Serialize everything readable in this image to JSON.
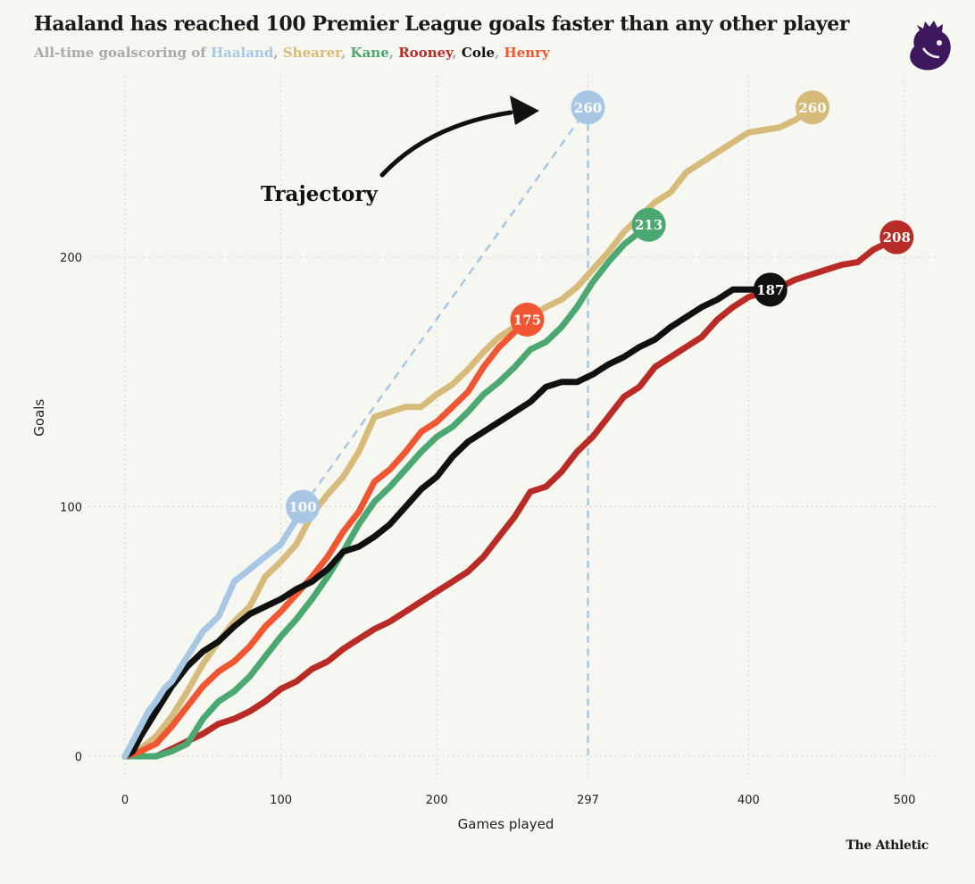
{
  "chart_data": {
    "type": "line",
    "title": "Haaland has reached 100 Premier League goals faster than any other player",
    "subtitle_prefix": "All-time goalscoring of",
    "xlabel": "Games played",
    "ylabel": "Goals",
    "xlim": [
      0,
      520
    ],
    "ylim": [
      0,
      270
    ],
    "x_ticks": [
      0,
      100,
      200,
      297,
      400,
      500
    ],
    "y_ticks": [
      0,
      100,
      200
    ],
    "x_tick_labels": [
      "0",
      "100",
      "200",
      "297",
      "400",
      "500"
    ],
    "y_tick_labels": [
      "0",
      "100",
      "200"
    ],
    "annotation": "Trajectory",
    "reference_line": {
      "x": 297,
      "label": "297"
    },
    "projection": {
      "from": [
        114,
        100
      ],
      "to": [
        297,
        260
      ],
      "label": "260",
      "color": "#a8c7e5"
    },
    "series": [
      {
        "name": "Haaland",
        "color": "#a8c7e5",
        "end_label": "100",
        "x": [
          0,
          5,
          10,
          15,
          20,
          25,
          30,
          40,
          50,
          60,
          70,
          80,
          90,
          100,
          105,
          110,
          114
        ],
        "y": [
          0,
          6,
          12,
          18,
          22,
          27,
          30,
          40,
          50,
          56,
          70,
          75,
          80,
          85,
          90,
          95,
          100
        ]
      },
      {
        "name": "Shearer",
        "color": "#d6bb7b",
        "end_label": "260",
        "x": [
          0,
          10,
          20,
          30,
          40,
          50,
          60,
          70,
          80,
          90,
          100,
          110,
          120,
          130,
          140,
          150,
          160,
          170,
          180,
          190,
          200,
          210,
          220,
          230,
          240,
          250,
          260,
          270,
          280,
          290,
          300,
          310,
          320,
          330,
          340,
          350,
          360,
          370,
          380,
          390,
          400,
          410,
          420,
          430,
          441
        ],
        "y": [
          0,
          3,
          8,
          16,
          26,
          37,
          46,
          54,
          60,
          72,
          78,
          85,
          97,
          105,
          112,
          122,
          136,
          138,
          140,
          140,
          145,
          149,
          155,
          162,
          168,
          172,
          176,
          180,
          183,
          188,
          195,
          202,
          210,
          216,
          222,
          226,
          234,
          238,
          242,
          246,
          250,
          251,
          252,
          255,
          260
        ]
      },
      {
        "name": "Kane",
        "color": "#4ba870",
        "end_label": "213",
        "x": [
          0,
          10,
          20,
          30,
          40,
          50,
          60,
          70,
          80,
          90,
          100,
          110,
          120,
          130,
          140,
          150,
          160,
          170,
          180,
          190,
          200,
          210,
          220,
          230,
          240,
          250,
          260,
          270,
          280,
          290,
          300,
          310,
          320,
          330,
          336
        ],
        "y": [
          0,
          0,
          0,
          2,
          5,
          15,
          22,
          26,
          32,
          40,
          48,
          55,
          63,
          72,
          82,
          93,
          102,
          108,
          115,
          122,
          128,
          132,
          138,
          145,
          150,
          156,
          163,
          166,
          172,
          180,
          190,
          198,
          205,
          210,
          213
        ]
      },
      {
        "name": "Rooney",
        "color": "#b92b26",
        "end_label": "208",
        "x": [
          0,
          10,
          20,
          30,
          40,
          50,
          60,
          70,
          80,
          90,
          100,
          110,
          120,
          130,
          140,
          150,
          160,
          170,
          180,
          190,
          200,
          210,
          220,
          230,
          240,
          250,
          260,
          270,
          280,
          290,
          300,
          310,
          320,
          330,
          340,
          350,
          360,
          370,
          380,
          390,
          400,
          410,
          420,
          430,
          440,
          450,
          460,
          470,
          480,
          490,
          495
        ],
        "y": [
          0,
          0,
          0,
          3,
          6,
          9,
          13,
          15,
          18,
          22,
          27,
          30,
          35,
          38,
          43,
          47,
          51,
          54,
          58,
          62,
          66,
          70,
          74,
          80,
          88,
          96,
          106,
          108,
          114,
          122,
          128,
          136,
          144,
          148,
          156,
          160,
          164,
          168,
          175,
          180,
          184,
          186,
          188,
          191,
          193,
          195,
          197,
          198,
          203,
          206,
          208
        ]
      },
      {
        "name": "Cole",
        "color": "#111111",
        "end_label": "187",
        "x": [
          0,
          5,
          10,
          20,
          30,
          40,
          50,
          60,
          70,
          80,
          90,
          100,
          110,
          120,
          130,
          140,
          150,
          160,
          170,
          180,
          190,
          200,
          210,
          220,
          230,
          240,
          250,
          260,
          270,
          280,
          290,
          300,
          310,
          320,
          330,
          340,
          350,
          360,
          370,
          380,
          390,
          400,
          410,
          414
        ],
        "y": [
          0,
          2,
          8,
          18,
          28,
          36,
          42,
          46,
          52,
          57,
          60,
          63,
          67,
          70,
          75,
          82,
          84,
          88,
          93,
          100,
          107,
          112,
          120,
          126,
          130,
          134,
          138,
          142,
          148,
          150,
          150,
          153,
          157,
          160,
          164,
          167,
          172,
          176,
          180,
          183,
          187,
          187,
          187,
          187
        ]
      },
      {
        "name": "Henry",
        "color": "#f05632",
        "end_label": "175",
        "x": [
          0,
          10,
          20,
          30,
          40,
          50,
          60,
          70,
          80,
          90,
          100,
          110,
          120,
          130,
          140,
          150,
          160,
          170,
          180,
          190,
          200,
          210,
          220,
          230,
          240,
          250,
          258
        ],
        "y": [
          0,
          2,
          5,
          12,
          20,
          28,
          34,
          38,
          44,
          52,
          58,
          65,
          72,
          80,
          90,
          98,
          110,
          115,
          122,
          130,
          134,
          140,
          146,
          156,
          164,
          170,
          175
        ]
      }
    ]
  }
}
